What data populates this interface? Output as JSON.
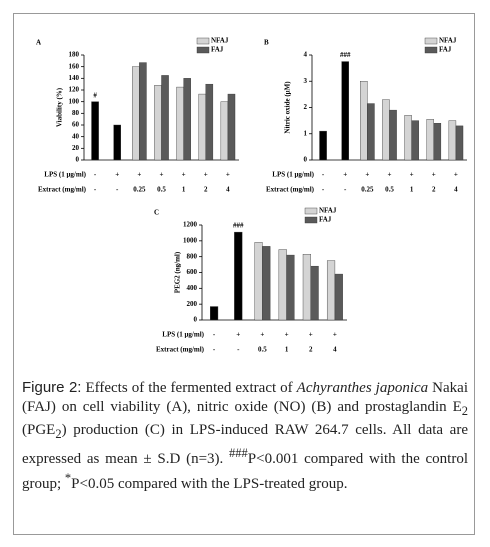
{
  "chart_data": [
    {
      "type": "bar",
      "label": "A",
      "y_label": "Viability (%)",
      "ylim": [
        0,
        180
      ],
      "yticks": [
        0,
        20,
        40,
        60,
        80,
        100,
        120,
        140,
        160,
        180
      ],
      "annotation": "#",
      "row_labels": [
        "LPS (1 μg/ml)",
        "Extract (mg/ml)"
      ],
      "lps": [
        "-",
        "+",
        "+",
        "+",
        "+",
        "+",
        "+"
      ],
      "categories": [
        "-",
        "-",
        "0.25",
        "0.5",
        "1",
        "2",
        "4"
      ],
      "series": [
        {
          "color": "#000000",
          "values": [
            100,
            60,
            null,
            null,
            null,
            null,
            null
          ]
        },
        {
          "name": "NFAJ",
          "color": "#d4d4d4",
          "values": [
            null,
            null,
            160,
            128,
            125,
            113,
            100
          ]
        },
        {
          "name": "FAJ",
          "color": "#5a5a5a",
          "values": [
            null,
            null,
            167,
            145,
            140,
            130,
            113
          ]
        }
      ]
    },
    {
      "type": "bar",
      "label": "B",
      "y_label": "Nitric oxide (μM)",
      "ylim": [
        0,
        4
      ],
      "yticks": [
        0,
        1,
        2,
        3,
        4
      ],
      "annotation": "###",
      "row_labels": [
        "LPS (1 μg/ml)",
        "Extract (mg/ml)"
      ],
      "lps": [
        "-",
        "+",
        "+",
        "+",
        "+",
        "+",
        "+"
      ],
      "categories": [
        "-",
        "-",
        "0.25",
        "0.5",
        "1",
        "2",
        "4"
      ],
      "series": [
        {
          "color": "#000000",
          "values": [
            1.1,
            3.75,
            null,
            null,
            null,
            null,
            null
          ]
        },
        {
          "name": "NFAJ",
          "color": "#d4d4d4",
          "values": [
            null,
            null,
            3.0,
            2.3,
            1.7,
            1.55,
            1.5
          ]
        },
        {
          "name": "FAJ",
          "color": "#5a5a5a",
          "values": [
            null,
            null,
            2.15,
            1.9,
            1.5,
            1.4,
            1.3
          ]
        }
      ]
    },
    {
      "type": "bar",
      "label": "C",
      "y_label": "PEG2 (ng/ml)",
      "ylim": [
        0,
        1200
      ],
      "yticks": [
        0,
        200,
        400,
        600,
        800,
        1000,
        1200
      ],
      "annotation": "###",
      "row_labels": [
        "LPS (1 μg/ml)",
        "Extract (mg/ml)"
      ],
      "lps": [
        "-",
        "+",
        "+",
        "+",
        "+",
        "+"
      ],
      "categories": [
        "-",
        "-",
        "0.5",
        "1",
        "2",
        "4"
      ],
      "series": [
        {
          "color": "#000000",
          "values": [
            170,
            1110,
            null,
            null,
            null,
            null
          ]
        },
        {
          "name": "NFAJ",
          "color": "#d4d4d4",
          "values": [
            null,
            null,
            980,
            890,
            830,
            750
          ]
        },
        {
          "name": "FAJ",
          "color": "#5a5a5a",
          "values": [
            null,
            null,
            930,
            820,
            680,
            580
          ]
        }
      ]
    }
  ],
  "caption": {
    "label": "Figure 2:",
    "parts": [
      "Effects of the fermented extract of ",
      "Achyranthes japonica",
      " Nakai (FAJ) on cell viability (A), nitric oxide (NO) (B) and prostaglandin E",
      "2",
      " (PGE",
      "2",
      ") production (C) in LPS-induced RAW 264.7 cells. All data are expressed as mean ± S.D (n=3). ",
      "###",
      "P<0.001 compared with the control group; ",
      "*",
      "P<0.05 compared with the LPS-treated group."
    ]
  }
}
